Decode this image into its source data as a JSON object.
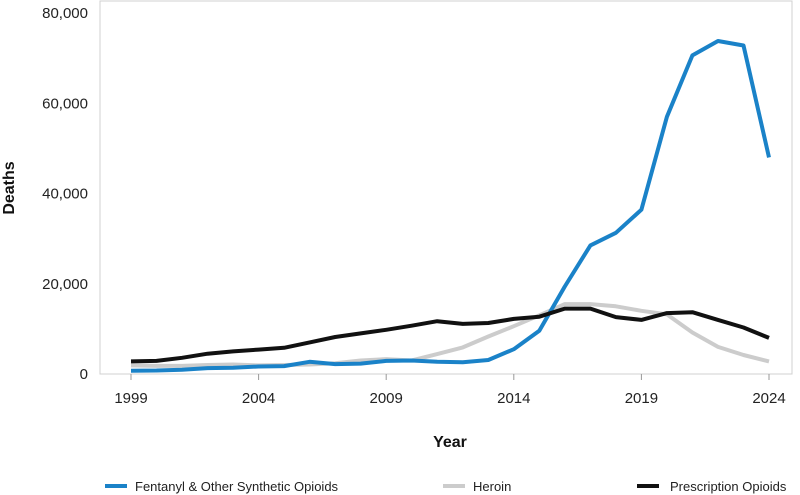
{
  "chart_data": {
    "type": "line",
    "xlabel": "Year",
    "ylabel": "Deaths",
    "xlim": [
      1999,
      2024
    ],
    "ylim": [
      0,
      80000
    ],
    "x_ticks": [
      1999,
      2004,
      2009,
      2014,
      2019,
      2024
    ],
    "y_ticks": [
      {
        "value": 0,
        "label": "0"
      },
      {
        "value": 20000,
        "label": "20,000"
      },
      {
        "value": 40000,
        "label": "40,000"
      },
      {
        "value": 60000,
        "label": "60,000"
      },
      {
        "value": 80000,
        "label": "80,000"
      }
    ],
    "grid": false,
    "legend_position": "bottom",
    "x": [
      1999,
      2000,
      2001,
      2002,
      2003,
      2004,
      2005,
      2006,
      2007,
      2008,
      2009,
      2010,
      2011,
      2012,
      2013,
      2014,
      2015,
      2016,
      2017,
      2018,
      2019,
      2020,
      2021,
      2022,
      2023,
      2024
    ],
    "series": [
      {
        "name": "Fentanyl & Other Synthetic Opioids",
        "color": "#1a82c8",
        "values": [
          730,
          780,
          960,
          1300,
          1400,
          1660,
          1740,
          2700,
          2200,
          2300,
          2900,
          3000,
          2700,
          2600,
          3100,
          5500,
          9600,
          19400,
          28500,
          31300,
          36400,
          57000,
          70600,
          73800,
          72800,
          48000
        ]
      },
      {
        "name": "Heroin",
        "color": "#cccccc",
        "values": [
          1900,
          1800,
          1800,
          2000,
          2100,
          1900,
          2000,
          2100,
          2400,
          3000,
          3300,
          3000,
          4400,
          5900,
          8300,
          10600,
          13000,
          15500,
          15500,
          15000,
          14000,
          13200,
          9200,
          6000,
          4200,
          2800
        ]
      },
      {
        "name": "Prescription Opioids",
        "color": "#111111",
        "values": [
          2800,
          2900,
          3600,
          4500,
          5000,
          5400,
          5800,
          7000,
          8200,
          9000,
          9800,
          10700,
          11700,
          11100,
          11300,
          12200,
          12700,
          14500,
          14500,
          12600,
          12000,
          13500,
          13700,
          12000,
          10300,
          8000
        ]
      }
    ]
  }
}
